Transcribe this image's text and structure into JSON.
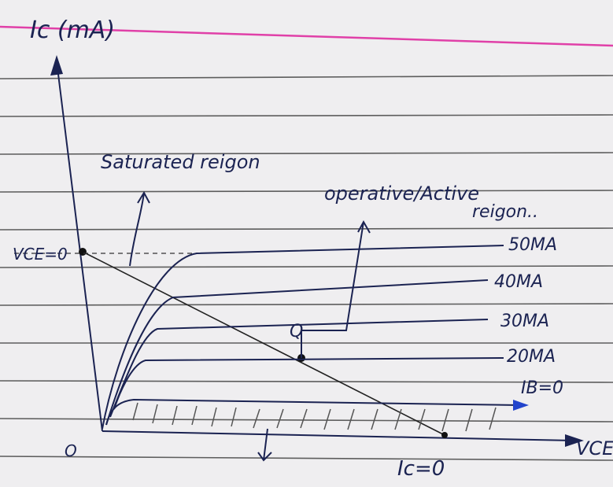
{
  "axes": {
    "y_label": "Ic (mA)",
    "x_label": "VCE",
    "origin": "O"
  },
  "labels": {
    "saturated": "Saturated reigon",
    "active": "operative/Active",
    "active_2": "reigon..",
    "vce_zero": "VCE=0",
    "ic_zero": "Ic=0",
    "q_point": "Q"
  },
  "curves": [
    {
      "label": "50MA"
    },
    {
      "label": "40MA"
    },
    {
      "label": "30MA"
    },
    {
      "label": "20MA"
    },
    {
      "label": "IB=0"
    }
  ]
}
